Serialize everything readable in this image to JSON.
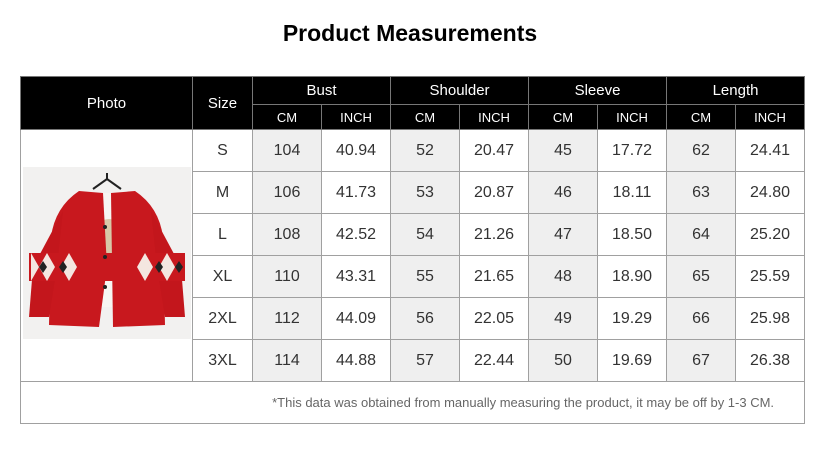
{
  "title": "Product Measurements",
  "table": {
    "header": {
      "photo": "Photo",
      "size": "Size",
      "groups": [
        {
          "label": "Bust",
          "units": [
            "CM",
            "INCH"
          ]
        },
        {
          "label": "Shoulder",
          "units": [
            "CM",
            "INCH"
          ]
        },
        {
          "label": "Sleeve",
          "units": [
            "CM",
            "INCH"
          ]
        },
        {
          "label": "Length",
          "units": [
            "CM",
            "INCH"
          ]
        }
      ]
    },
    "rows": [
      [
        "S",
        "104",
        "40.94",
        "52",
        "20.47",
        "45",
        "17.72",
        "62",
        "24.41"
      ],
      [
        "M",
        "106",
        "41.73",
        "53",
        "20.87",
        "46",
        "18.11",
        "63",
        "24.80"
      ],
      [
        "L",
        "108",
        "42.52",
        "54",
        "21.26",
        "47",
        "18.50",
        "64",
        "25.20"
      ],
      [
        "XL",
        "110",
        "43.31",
        "55",
        "21.65",
        "48",
        "18.90",
        "65",
        "25.59"
      ],
      [
        "2XL",
        "112",
        "44.09",
        "56",
        "22.05",
        "49",
        "19.29",
        "66",
        "25.98"
      ],
      [
        "3XL",
        "114",
        "44.88",
        "57",
        "22.44",
        "50",
        "19.69",
        "67",
        "26.38"
      ]
    ],
    "note": "*This data was obtained from manually measuring the product, it may be off by 1-3 CM."
  }
}
